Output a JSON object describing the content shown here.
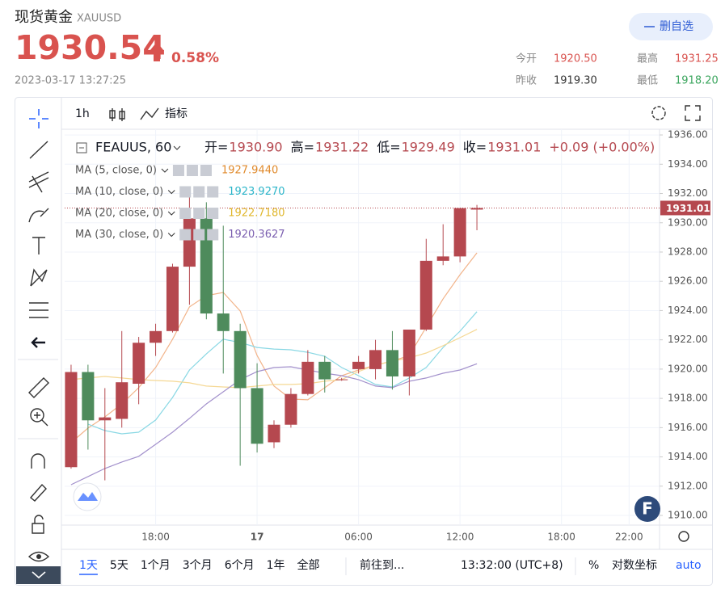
{
  "header": {
    "title": "现货黄金",
    "symbol": "XAUUSD",
    "price": "1930.54",
    "change": "0.58%",
    "timestamp": "2023-03-17 13:27:25",
    "button": "删自选",
    "stats": [
      {
        "label": "今开",
        "value": "1920.50",
        "color": "#d9534f"
      },
      {
        "label": "最高",
        "value": "1931.25",
        "color": "#d9534f"
      },
      {
        "label": "昨收",
        "value": "1919.30",
        "color": "#333333"
      },
      {
        "label": "最低",
        "value": "1918.20",
        "color": "#3aa55d"
      }
    ]
  },
  "toolbar": {
    "interval": "1h",
    "indicators": "指标"
  },
  "chart_data": {
    "type": "candlestick",
    "symbol": "FEAUUS, 60",
    "ohlc_legend": [
      {
        "label": "开=",
        "value": "1930.90"
      },
      {
        "label": "高=",
        "value": "1931.22"
      },
      {
        "label": "低=",
        "value": "1929.49"
      },
      {
        "label": "收=",
        "value": "1931.01"
      }
    ],
    "change_legend": "+0.09 (+0.00%)",
    "up_color": "#b5484f",
    "down_color": "#4e8b5c",
    "open": [
      1913.3,
      1919.8,
      1916.5,
      1916.6,
      1919.0,
      1921.8,
      1922.6,
      1927.0,
      1930.3,
      1923.8,
      1922.6,
      1918.7,
      1915.0,
      1916.2,
      1918.3,
      1920.5,
      1919.3,
      1920.0,
      1920.0,
      1921.3,
      1919.5,
      1922.7,
      1927.4,
      1927.7,
      1930.9
    ],
    "high": [
      1920.3,
      1920.3,
      1918.7,
      1922.6,
      1922.2,
      1923.1,
      1927.2,
      1932.0,
      1931.4,
      1929.8,
      1923.1,
      1920.4,
      1916.5,
      1918.7,
      1921.3,
      1920.9,
      1919.4,
      1920.9,
      1922.0,
      1922.6,
      1922.7,
      1928.9,
      1929.9,
      1931.0,
      1931.22
    ],
    "low": [
      1913.2,
      1914.5,
      1912.4,
      1916.0,
      1917.6,
      1920.9,
      1922.5,
      1924.4,
      1923.4,
      1919.7,
      1913.4,
      1914.3,
      1914.6,
      1916.0,
      1918.2,
      1918.4,
      1919.2,
      1919.7,
      1919.3,
      1918.6,
      1918.2,
      1922.6,
      1927.1,
      1927.3,
      1929.49
    ],
    "close": [
      1919.8,
      1916.5,
      1916.7,
      1919.1,
      1921.8,
      1922.6,
      1927.0,
      1930.3,
      1923.8,
      1922.6,
      1918.7,
      1914.9,
      1916.2,
      1918.3,
      1920.5,
      1919.3,
      1919.3,
      1920.5,
      1921.3,
      1919.5,
      1922.7,
      1927.4,
      1927.7,
      1931.0,
      1931.01
    ],
    "series": [
      {
        "name": "MA (5, close, 0)",
        "color": "#f2b48a",
        "legend_color": "#e08a2c",
        "legend_value": "1927.9440",
        "values": [
          1914.97,
          1915.97,
          1916.74,
          1917.62,
          1918.73,
          1920.11,
          1922.04,
          1924.25,
          1925.02,
          1925.24,
          1923.97,
          1920.93,
          1918.84,
          1917.95,
          1917.9,
          1918.73,
          1919.55,
          1919.94,
          1920.27,
          1920.55,
          1920.93,
          1922.87,
          1924.8,
          1926.45,
          1927.944
        ]
      },
      {
        "name": "MA (10, close, 0)",
        "color": "#8ad8e4",
        "legend_color": "#2bb5c9",
        "legend_value": "1923.9270",
        "values": [
          null,
          1916.24,
          1915.8,
          1915.58,
          1915.69,
          1916.52,
          1918.06,
          1919.94,
          1921.04,
          1922.04,
          1921.82,
          1921.48,
          1921.37,
          1921.32,
          1921.15,
          1920.88,
          1920.11,
          1919.55,
          1918.95,
          1918.78,
          1919.39,
          1920.11,
          1921.48,
          1922.59,
          1923.927
        ]
      },
      {
        "name": "MA (20, close, 0)",
        "color": "#f5d894",
        "legend_color": "#e0b72c",
        "legend_value": "1922.7180",
        "values": [
          1919.28,
          1919.39,
          1919.5,
          1919.39,
          1919.28,
          1919.22,
          1919.17,
          1919.06,
          1918.84,
          1918.78,
          1918.73,
          1918.84,
          1918.95,
          1918.95,
          1919.0,
          1919.17,
          1919.28,
          1919.83,
          1920.27,
          1920.55,
          1920.77,
          1921.1,
          1921.6,
          1922.15,
          1922.718
        ]
      },
      {
        "name": "MA (30, close, 0)",
        "color": "#a391cc",
        "legend_color": "#7b5fb0",
        "legend_value": "1920.3627",
        "values": [
          1912.1,
          1912.66,
          1913.21,
          1913.65,
          1914.04,
          1914.86,
          1915.69,
          1916.63,
          1917.62,
          1918.45,
          1919.28,
          1919.83,
          1920.11,
          1920.16,
          1919.94,
          1919.72,
          1919.55,
          1919.28,
          1918.84,
          1918.73,
          1919.17,
          1919.39,
          1919.72,
          1919.94,
          1920.3627
        ]
      }
    ],
    "price_line": 1931.01,
    "xlim": [
      -0.38,
      34.8
    ],
    "xticks": [
      {
        "value": 5,
        "label": "18:00"
      },
      {
        "value": 11,
        "label": "17"
      },
      {
        "value": 17,
        "label": "06:00"
      },
      {
        "value": 23,
        "label": "12:00"
      },
      {
        "value": 29,
        "label": "18:00"
      },
      {
        "value": 33,
        "label": "22:00"
      }
    ],
    "ylim": [
      1909.34,
      1936.39
    ],
    "yticks": [
      {
        "value": 1910,
        "label": "1910.00"
      },
      {
        "value": 1912,
        "label": "1912.00"
      },
      {
        "value": 1914,
        "label": "1914.00"
      },
      {
        "value": 1916,
        "label": "1916.00"
      },
      {
        "value": 1918,
        "label": "1918.00"
      },
      {
        "value": 1920,
        "label": "1920.00"
      },
      {
        "value": 1922,
        "label": "1922.00"
      },
      {
        "value": 1924,
        "label": "1924.00"
      },
      {
        "value": 1926,
        "label": "1926.00"
      },
      {
        "value": 1928,
        "label": "1928.00"
      },
      {
        "value": 1930,
        "label": "1930.00"
      },
      {
        "value": 1932,
        "label": "1932.00"
      },
      {
        "value": 1934,
        "label": "1934.00"
      },
      {
        "value": 1936,
        "label": "1936.00"
      }
    ],
    "grid": true
  },
  "bottom_bar": {
    "ranges": [
      "1天",
      "5天",
      "1个月",
      "3个月",
      "6个月",
      "1年",
      "全部"
    ],
    "goto": "前往到...",
    "time": "13:32:00 (UTC+8)",
    "percent": "%",
    "log": "对数坐标",
    "auto": "auto"
  }
}
